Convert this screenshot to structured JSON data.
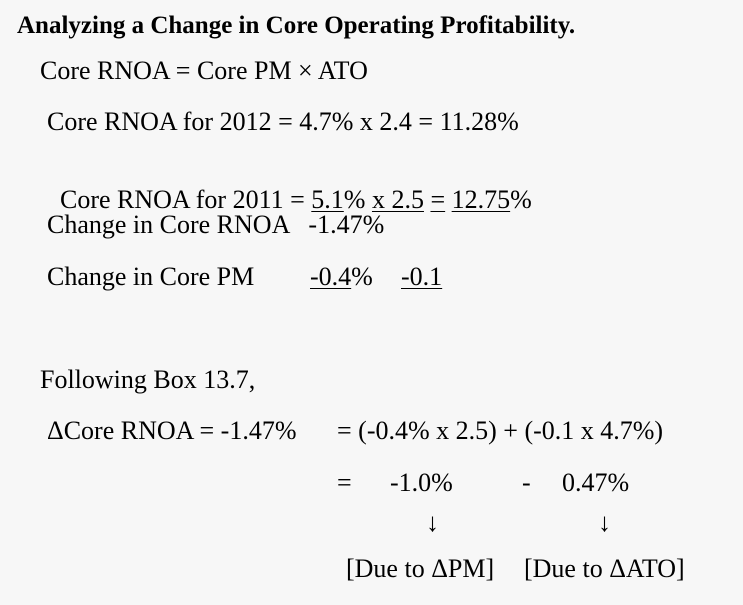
{
  "title": "Analyzing a Change in Core Operating Profitability.",
  "formula": "Core RNOA = Core PM × ATO",
  "rnoa_2012": {
    "label": "Core RNOA for 2012 = 4.7% x 2.4 = 11.28%"
  },
  "rnoa_2011": {
    "prefix": "Core RNOA for 2011 = ",
    "pm": "5.1",
    "pct1": "% ",
    "mult": "x 2.5",
    "sp": " ",
    "eq": "=",
    "sp2": " ",
    "res": "12.75",
    "pct2": "%"
  },
  "change_rnoa": "Change in Core RNOA   -1.47%",
  "change_pm": {
    "label": "Change in Core PM",
    "pm_num": "-0.4",
    "pm_pct": "%",
    "ato": "-0.1"
  },
  "following": "Following Box 13.7,",
  "delta_line": {
    "left": "ΔCore RNOA = -1.47%",
    "right": "= (-0.4% x 2.5) + (-0.1 x 4.7%)"
  },
  "result_line": {
    "eq": "=",
    "pm_effect": "-1.0%",
    "minus": "-",
    "ato_effect": "0.47%"
  },
  "arrows": {
    "left": "↓",
    "right": "↓"
  },
  "due": {
    "pm": "[Due to ΔPM]",
    "ato": "[Due to ΔATO]"
  }
}
